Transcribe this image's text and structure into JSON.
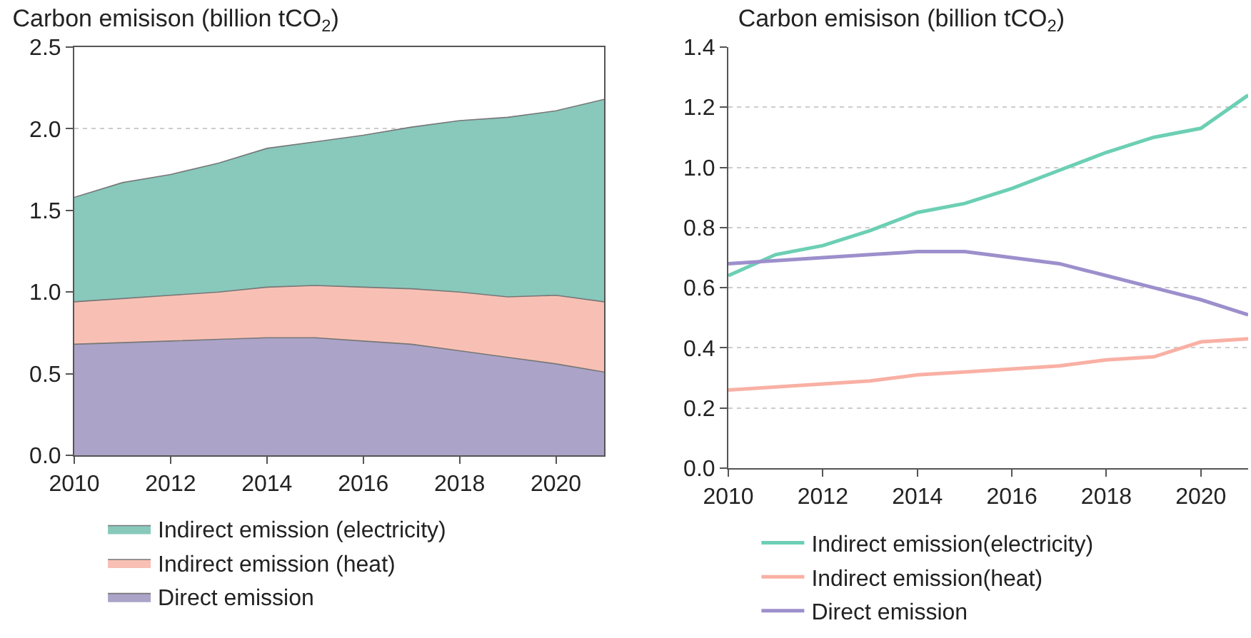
{
  "chart_data": [
    {
      "type": "area",
      "stacked": true,
      "title": "Carbon emisison (billion tCO$_{2}$)",
      "x": [
        2010,
        2011,
        2012,
        2013,
        2014,
        2015,
        2016,
        2017,
        2018,
        2019,
        2020,
        2021
      ],
      "series": [
        {
          "name": "Direct emission",
          "color": "#aba3c8",
          "values": [
            0.68,
            0.69,
            0.7,
            0.71,
            0.72,
            0.72,
            0.7,
            0.68,
            0.64,
            0.6,
            0.56,
            0.51
          ]
        },
        {
          "name": "Indirect emission (heat)",
          "color": "#f8c0b4",
          "values": [
            0.26,
            0.27,
            0.28,
            0.29,
            0.31,
            0.32,
            0.33,
            0.34,
            0.36,
            0.37,
            0.42,
            0.43
          ]
        },
        {
          "name": "Indirect emission (electricity)",
          "color": "#88c9bc",
          "values": [
            0.64,
            0.71,
            0.74,
            0.79,
            0.85,
            0.88,
            0.93,
            0.99,
            1.05,
            1.1,
            1.13,
            1.24
          ]
        }
      ],
      "xlim": [
        2010,
        2021
      ],
      "xticks": [
        2010,
        2012,
        2014,
        2016,
        2018,
        2020
      ],
      "ylim": [
        0,
        2.5
      ],
      "yticks": [
        {
          "value": 0,
          "label": "0.0"
        },
        {
          "value": 0.5,
          "label": "0.5"
        },
        {
          "value": 1,
          "label": "1.0"
        },
        {
          "value": 1.5,
          "label": "1.5"
        },
        {
          "value": 2,
          "label": "2.0"
        },
        {
          "value": 2.5,
          "label": "2.5"
        }
      ],
      "grid": "y",
      "legend": "bottom"
    },
    {
      "type": "line",
      "title": "Carbon emisison (billion tCO$_{2}$)",
      "x": [
        2010,
        2011,
        2012,
        2013,
        2014,
        2015,
        2016,
        2017,
        2018,
        2019,
        2020,
        2021
      ],
      "series": [
        {
          "name": "Indirect emission(electricity)",
          "color": "#6ccfb4",
          "values": [
            0.64,
            0.71,
            0.74,
            0.79,
            0.85,
            0.88,
            0.93,
            0.99,
            1.05,
            1.1,
            1.13,
            1.24
          ]
        },
        {
          "name": "Indirect emission(heat)",
          "color": "#f9b0a4",
          "values": [
            0.26,
            0.27,
            0.28,
            0.29,
            0.31,
            0.32,
            0.33,
            0.34,
            0.36,
            0.37,
            0.42,
            0.43
          ]
        },
        {
          "name": "Direct emission",
          "color": "#9d8fcc",
          "values": [
            0.68,
            0.69,
            0.7,
            0.71,
            0.72,
            0.72,
            0.7,
            0.68,
            0.64,
            0.6,
            0.56,
            0.51
          ]
        }
      ],
      "xlim": [
        2010,
        2021
      ],
      "xticks": [
        2010,
        2012,
        2014,
        2016,
        2018,
        2020
      ],
      "ylim": [
        0,
        1.4
      ],
      "yticks": [
        {
          "value": 0,
          "label": "0.0"
        },
        {
          "value": 0.2,
          "label": "0.2"
        },
        {
          "value": 0.4,
          "label": "0.4"
        },
        {
          "value": 0.6,
          "label": "0.6"
        },
        {
          "value": 0.8,
          "label": "0.8"
        },
        {
          "value": 1,
          "label": "1.0"
        },
        {
          "value": 1.2,
          "label": "1.2"
        },
        {
          "value": 1.4,
          "label": "1.4"
        }
      ],
      "grid": "y",
      "legend": "bottom"
    }
  ]
}
